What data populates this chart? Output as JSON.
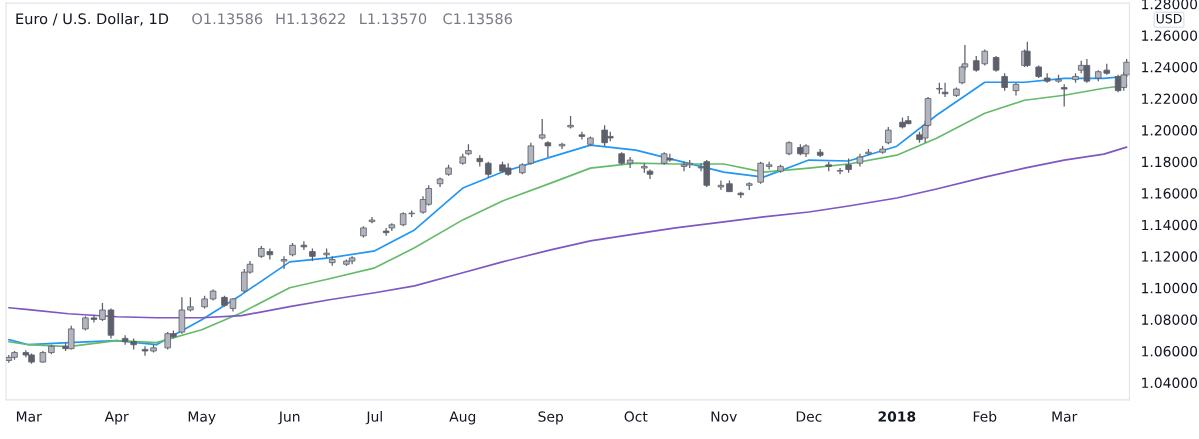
{
  "chart_data": {
    "type": "candlestick",
    "title": "Euro / U.S. Dollar, 1D",
    "annotations": [
      "O1.13586",
      "H1.13622",
      "L1.13570",
      "C1.13586",
      "USD"
    ],
    "x": [
      "2017-02-22",
      "2017-02-24",
      "2017-02-28",
      "2017-03-02",
      "2017-03-06",
      "2017-03-09",
      "2017-03-14",
      "2017-03-16",
      "2017-03-21",
      "2017-03-24",
      "2017-03-27",
      "2017-03-30",
      "2017-04-04",
      "2017-04-07",
      "2017-04-11",
      "2017-04-14",
      "2017-04-19",
      "2017-04-21",
      "2017-04-24",
      "2017-04-27",
      "2017-05-02",
      "2017-05-05",
      "2017-05-09",
      "2017-05-12",
      "2017-05-16",
      "2017-05-18",
      "2017-05-22",
      "2017-05-25",
      "2017-05-30",
      "2017-06-02",
      "2017-06-06",
      "2017-06-09",
      "2017-06-14",
      "2017-06-16",
      "2017-06-21",
      "2017-06-23",
      "2017-06-27",
      "2017-06-30",
      "2017-07-05",
      "2017-07-07",
      "2017-07-11",
      "2017-07-14",
      "2017-07-18",
      "2017-07-20",
      "2017-07-24",
      "2017-07-27",
      "2017-08-01",
      "2017-08-03",
      "2017-08-07",
      "2017-08-10",
      "2017-08-15",
      "2017-08-17",
      "2017-08-22",
      "2017-08-25",
      "2017-08-29",
      "2017-08-31",
      "2017-09-05",
      "2017-09-08",
      "2017-09-12",
      "2017-09-15",
      "2017-09-20",
      "2017-09-22",
      "2017-09-26",
      "2017-09-29",
      "2017-10-04",
      "2017-10-06",
      "2017-10-11",
      "2017-10-13",
      "2017-10-18",
      "2017-10-20",
      "2017-10-24",
      "2017-10-26",
      "2017-10-31",
      "2017-11-03",
      "2017-11-07",
      "2017-11-10",
      "2017-11-14",
      "2017-11-17",
      "2017-11-21",
      "2017-11-24",
      "2017-11-28",
      "2017-11-30",
      "2017-12-05",
      "2017-12-08",
      "2017-12-12",
      "2017-12-15",
      "2017-12-19",
      "2017-12-22",
      "2017-12-27",
      "2017-12-29",
      "2018-01-03",
      "2018-01-05",
      "2018-01-09",
      "2018-01-11",
      "2018-01-12",
      "2018-01-16",
      "2018-01-18",
      "2018-01-22",
      "2018-01-24",
      "2018-01-25",
      "2018-01-29",
      "2018-02-01",
      "2018-02-05",
      "2018-02-08",
      "2018-02-12",
      "2018-02-15",
      "2018-02-16",
      "2018-02-20",
      "2018-02-23",
      "2018-02-27",
      "2018-03-01",
      "2018-03-05",
      "2018-03-07",
      "2018-03-09",
      "2018-03-13",
      "2018-03-16",
      "2018-03-20",
      "2018-03-22",
      "2018-03-23"
    ],
    "ohlc": [
      [
        1.054,
        1.0575,
        1.0525,
        1.056
      ],
      [
        1.056,
        1.06,
        1.0545,
        1.059
      ],
      [
        1.059,
        1.0605,
        1.056,
        1.0575
      ],
      [
        1.0575,
        1.0585,
        1.052,
        1.053
      ],
      [
        1.053,
        1.06,
        1.0525,
        1.059
      ],
      [
        1.059,
        1.064,
        1.058,
        1.063
      ],
      [
        1.063,
        1.065,
        1.06,
        1.0615
      ],
      [
        1.0615,
        1.076,
        1.061,
        1.074
      ],
      [
        1.074,
        1.082,
        1.073,
        1.081
      ],
      [
        1.081,
        1.083,
        1.078,
        1.08
      ],
      [
        1.08,
        1.0905,
        1.079,
        1.086
      ],
      [
        1.086,
        1.087,
        1.068,
        1.07
      ],
      [
        1.068,
        1.07,
        1.064,
        1.066
      ],
      [
        1.066,
        1.068,
        1.061,
        1.064
      ],
      [
        1.061,
        1.063,
        1.057,
        1.06
      ],
      [
        1.06,
        1.064,
        1.059,
        1.062
      ],
      [
        1.062,
        1.072,
        1.061,
        1.071
      ],
      [
        1.071,
        1.073,
        1.068,
        1.069
      ],
      [
        1.072,
        1.094,
        1.071,
        1.086
      ],
      [
        1.086,
        1.094,
        1.085,
        1.088
      ],
      [
        1.088,
        1.095,
        1.087,
        1.093
      ],
      [
        1.093,
        1.099,
        1.092,
        1.098
      ],
      [
        1.094,
        1.095,
        1.088,
        1.089
      ],
      [
        1.087,
        1.0935,
        1.085,
        1.093
      ],
      [
        1.098,
        1.112,
        1.097,
        1.11
      ],
      [
        1.11,
        1.117,
        1.109,
        1.115
      ],
      [
        1.12,
        1.1265,
        1.119,
        1.125
      ],
      [
        1.123,
        1.125,
        1.118,
        1.121
      ],
      [
        1.117,
        1.12,
        1.112,
        1.118
      ],
      [
        1.121,
        1.1285,
        1.12,
        1.127
      ],
      [
        1.127,
        1.1295,
        1.124,
        1.126
      ],
      [
        1.123,
        1.125,
        1.117,
        1.12
      ],
      [
        1.121,
        1.125,
        1.119,
        1.122
      ],
      [
        1.116,
        1.12,
        1.114,
        1.118
      ],
      [
        1.115,
        1.118,
        1.114,
        1.117
      ],
      [
        1.117,
        1.12,
        1.115,
        1.119
      ],
      [
        1.133,
        1.139,
        1.132,
        1.138
      ],
      [
        1.142,
        1.145,
        1.141,
        1.143
      ],
      [
        1.136,
        1.138,
        1.133,
        1.135
      ],
      [
        1.138,
        1.141,
        1.136,
        1.14
      ],
      [
        1.14,
        1.148,
        1.139,
        1.147
      ],
      [
        1.147,
        1.149,
        1.145,
        1.147
      ],
      [
        1.148,
        1.158,
        1.147,
        1.156
      ],
      [
        1.153,
        1.165,
        1.152,
        1.163
      ],
      [
        1.166,
        1.17,
        1.164,
        1.169
      ],
      [
        1.172,
        1.178,
        1.171,
        1.176
      ],
      [
        1.179,
        1.185,
        1.178,
        1.183
      ],
      [
        1.185,
        1.191,
        1.184,
        1.187
      ],
      [
        1.182,
        1.184,
        1.177,
        1.18
      ],
      [
        1.179,
        1.18,
        1.17,
        1.172
      ],
      [
        1.178,
        1.18,
        1.173,
        1.174
      ],
      [
        1.176,
        1.179,
        1.171,
        1.172
      ],
      [
        1.173,
        1.179,
        1.172,
        1.178
      ],
      [
        1.179,
        1.192,
        1.178,
        1.19
      ],
      [
        1.195,
        1.207,
        1.194,
        1.197
      ],
      [
        1.192,
        1.193,
        1.183,
        1.19
      ],
      [
        1.19,
        1.192,
        1.188,
        1.191
      ],
      [
        1.202,
        1.209,
        1.201,
        1.203
      ],
      [
        1.197,
        1.199,
        1.194,
        1.196
      ],
      [
        1.191,
        1.196,
        1.19,
        1.195
      ],
      [
        1.2,
        1.203,
        1.19,
        1.192
      ],
      [
        1.196,
        1.199,
        1.193,
        1.195
      ],
      [
        1.185,
        1.186,
        1.178,
        1.179
      ],
      [
        1.179,
        1.183,
        1.176,
        1.181
      ],
      [
        1.176,
        1.179,
        1.173,
        1.177
      ],
      [
        1.174,
        1.175,
        1.169,
        1.172
      ],
      [
        1.179,
        1.186,
        1.178,
        1.185
      ],
      [
        1.182,
        1.185,
        1.18,
        1.181
      ],
      [
        1.177,
        1.18,
        1.174,
        1.178
      ],
      [
        1.178,
        1.181,
        1.176,
        1.179
      ],
      [
        1.176,
        1.179,
        1.174,
        1.176
      ],
      [
        1.18,
        1.181,
        1.164,
        1.165
      ],
      [
        1.164,
        1.168,
        1.162,
        1.165
      ],
      [
        1.166,
        1.168,
        1.161,
        1.161
      ],
      [
        1.16,
        1.161,
        1.157,
        1.159
      ],
      [
        1.165,
        1.167,
        1.162,
        1.166
      ],
      [
        1.167,
        1.18,
        1.166,
        1.179
      ],
      [
        1.177,
        1.18,
        1.175,
        1.178
      ],
      [
        1.174,
        1.178,
        1.173,
        1.177
      ],
      [
        1.185,
        1.193,
        1.184,
        1.192
      ],
      [
        1.189,
        1.191,
        1.184,
        1.185
      ],
      [
        1.185,
        1.191,
        1.183,
        1.19
      ],
      [
        1.186,
        1.188,
        1.183,
        1.184
      ],
      [
        1.178,
        1.18,
        1.174,
        1.177
      ],
      [
        1.174,
        1.176,
        1.172,
        1.174
      ],
      [
        1.178,
        1.182,
        1.173,
        1.175
      ],
      [
        1.179,
        1.185,
        1.177,
        1.183
      ],
      [
        1.185,
        1.188,
        1.184,
        1.186
      ],
      [
        1.186,
        1.19,
        1.185,
        1.188
      ],
      [
        1.192,
        1.202,
        1.191,
        1.2
      ],
      [
        1.205,
        1.208,
        1.201,
        1.202
      ],
      [
        1.206,
        1.209,
        1.204,
        1.204
      ],
      [
        1.197,
        1.199,
        1.192,
        1.194
      ],
      [
        1.195,
        1.206,
        1.192,
        1.203
      ],
      [
        1.203,
        1.221,
        1.202,
        1.22
      ],
      [
        1.226,
        1.23,
        1.223,
        1.226
      ],
      [
        1.224,
        1.23,
        1.221,
        1.223
      ],
      [
        1.222,
        1.227,
        1.221,
        1.226
      ],
      [
        1.23,
        1.241,
        1.229,
        1.24
      ],
      [
        1.24,
        1.254,
        1.238,
        1.242
      ],
      [
        1.244,
        1.247,
        1.237,
        1.238
      ],
      [
        1.242,
        1.251,
        1.241,
        1.25
      ],
      [
        1.246,
        1.247,
        1.237,
        1.238
      ],
      [
        1.234,
        1.236,
        1.225,
        1.227
      ],
      [
        1.225,
        1.23,
        1.222,
        1.229
      ],
      [
        1.241,
        1.251,
        1.24,
        1.25
      ],
      [
        1.25,
        1.256,
        1.24,
        1.241
      ],
      [
        1.24,
        1.241,
        1.233,
        1.234
      ],
      [
        1.233,
        1.236,
        1.23,
        1.231
      ],
      [
        1.231,
        1.235,
        1.23,
        1.232
      ],
      [
        1.227,
        1.229,
        1.215,
        1.226
      ],
      [
        1.232,
        1.236,
        1.23,
        1.234
      ],
      [
        1.238,
        1.244,
        1.236,
        1.241
      ],
      [
        1.241,
        1.245,
        1.23,
        1.231
      ],
      [
        1.233,
        1.238,
        1.231,
        1.237
      ],
      [
        1.238,
        1.242,
        1.235,
        1.236
      ],
      [
        1.234,
        1.235,
        1.224,
        1.225
      ],
      [
        1.227,
        1.237,
        1.225,
        1.235
      ],
      [
        1.235,
        1.245,
        1.234,
        1.243
      ]
    ],
    "series": [
      {
        "type": "line",
        "color": "#2196f3",
        "x": [
          "2017-02-22",
          "2017-03-01",
          "2017-03-15",
          "2017-04-01",
          "2017-04-15",
          "2017-05-01",
          "2017-05-15",
          "2017-06-01",
          "2017-06-15",
          "2017-07-01",
          "2017-07-15",
          "2017-08-01",
          "2017-08-15",
          "2017-09-01",
          "2017-09-15",
          "2017-10-01",
          "2017-10-15",
          "2017-11-01",
          "2017-11-15",
          "2017-12-01",
          "2017-12-15",
          "2018-01-01",
          "2018-01-15",
          "2018-02-01",
          "2018-02-15",
          "2018-03-01",
          "2018-03-15",
          "2018-03-23"
        ],
        "values": [
          1.0672,
          1.064,
          1.0653,
          1.0666,
          1.064,
          1.0798,
          1.0957,
          1.1165,
          1.119,
          1.1235,
          1.1367,
          1.1633,
          1.1734,
          1.1829,
          1.1905,
          1.1873,
          1.181,
          1.1734,
          1.1702,
          1.181,
          1.1804,
          1.1898,
          1.2094,
          1.2303,
          1.2303,
          1.2328,
          1.2328,
          1.2341
        ]
      },
      {
        "type": "line",
        "color": "#66bb6a",
        "x": [
          "2017-02-22",
          "2017-03-01",
          "2017-03-15",
          "2017-04-01",
          "2017-04-15",
          "2017-05-01",
          "2017-05-15",
          "2017-06-01",
          "2017-06-15",
          "2017-07-01",
          "2017-07-15",
          "2017-08-01",
          "2017-08-15",
          "2017-09-01",
          "2017-09-15",
          "2017-10-01",
          "2017-10-15",
          "2017-11-01",
          "2017-11-15",
          "2017-12-01",
          "2017-12-15",
          "2018-01-01",
          "2018-01-15",
          "2018-02-01",
          "2018-02-15",
          "2018-03-01",
          "2018-03-15",
          "2018-03-23"
        ],
        "values": [
          1.0659,
          1.064,
          1.0628,
          1.0666,
          1.0653,
          1.0735,
          1.0843,
          1.1001,
          1.1058,
          1.1127,
          1.1254,
          1.1431,
          1.1551,
          1.1664,
          1.1759,
          1.1791,
          1.1785,
          1.1785,
          1.1734,
          1.1759,
          1.1785,
          1.1841,
          1.1949,
          1.2107,
          1.2189,
          1.2221,
          1.2265,
          1.2284
        ]
      },
      {
        "type": "line",
        "color": "#7e57c2",
        "x": [
          "2017-02-22",
          "2017-03-01",
          "2017-03-15",
          "2017-04-01",
          "2017-04-15",
          "2017-05-01",
          "2017-05-15",
          "2017-06-01",
          "2017-06-15",
          "2017-07-01",
          "2017-07-15",
          "2017-08-01",
          "2017-08-15",
          "2017-09-01",
          "2017-09-15",
          "2017-10-01",
          "2017-10-15",
          "2017-11-01",
          "2017-11-15",
          "2017-12-01",
          "2017-12-15",
          "2018-01-01",
          "2018-01-15",
          "2018-02-01",
          "2018-02-15",
          "2018-03-01",
          "2018-03-15",
          "2018-03-23"
        ],
        "values": [
          1.0874,
          1.0862,
          1.0836,
          1.0817,
          1.0811,
          1.0811,
          1.0824,
          1.0881,
          1.0925,
          1.0969,
          1.1013,
          1.1096,
          1.1165,
          1.1241,
          1.1298,
          1.1342,
          1.138,
          1.1418,
          1.145,
          1.1481,
          1.1519,
          1.157,
          1.1627,
          1.1702,
          1.1759,
          1.181,
          1.1848,
          1.1892
        ]
      }
    ],
    "xlim": [
      "2017-02-21",
      "2018-03-24"
    ],
    "xticks": [
      {
        "value": "2017-03-01",
        "label": "Mar"
      },
      {
        "value": "2017-04-01",
        "label": "Apr"
      },
      {
        "value": "2017-05-01",
        "label": "May"
      },
      {
        "value": "2017-06-01",
        "label": "Jun"
      },
      {
        "value": "2017-07-01",
        "label": "Jul"
      },
      {
        "value": "2017-08-01",
        "label": "Aug"
      },
      {
        "value": "2017-09-01",
        "label": "Sep"
      },
      {
        "value": "2017-10-01",
        "label": "Oct"
      },
      {
        "value": "2017-11-01",
        "label": "Nov"
      },
      {
        "value": "2017-12-01",
        "label": "Dec"
      },
      {
        "value": "2018-01-01",
        "label": "2018"
      },
      {
        "value": "2018-02-01",
        "label": "Feb"
      },
      {
        "value": "2018-03-01",
        "label": "Mar"
      }
    ],
    "ylim": [
      1.029,
      1.2805
    ],
    "yticks": [
      {
        "value": 1.04,
        "label": "1.04000"
      },
      {
        "value": 1.06,
        "label": "1.06000"
      },
      {
        "value": 1.08,
        "label": "1.08000"
      },
      {
        "value": 1.1,
        "label": "1.10000"
      },
      {
        "value": 1.12,
        "label": "1.12000"
      },
      {
        "value": 1.14,
        "label": "1.14000"
      },
      {
        "value": 1.16,
        "label": "1.16000"
      },
      {
        "value": 1.18,
        "label": "1.18000"
      },
      {
        "value": 1.2,
        "label": "1.20000"
      },
      {
        "value": 1.22,
        "label": "1.22000"
      },
      {
        "value": 1.24,
        "label": "1.24000"
      },
      {
        "value": 1.26,
        "label": "1.26000"
      },
      {
        "value": 1.28,
        "label": "1.28000"
      }
    ],
    "grid": false,
    "legend": false
  }
}
